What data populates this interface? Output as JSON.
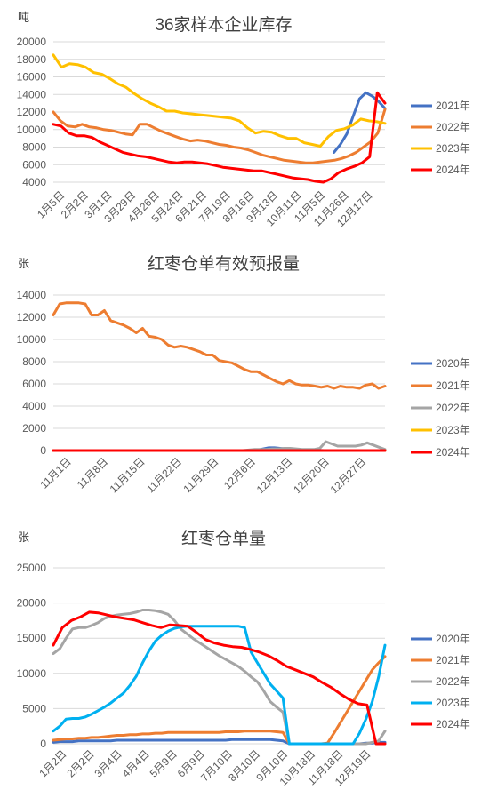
{
  "chart_data": [
    {
      "type": "line",
      "title": "36家样本企业库存",
      "unit": "吨",
      "ylim": [
        4000,
        20000
      ],
      "yticks": [
        4000,
        6000,
        8000,
        10000,
        12000,
        14000,
        16000,
        18000,
        20000
      ],
      "x_tick_labels": [
        "1月5日",
        "2月2日",
        "3月1日",
        "3月29日",
        "4月26日",
        "5月24日",
        "6月21日",
        "7月19日",
        "8月16日",
        "9月13日",
        "10月11日",
        "11月5日",
        "11月26日",
        "12月17日"
      ],
      "grid": true,
      "legend_position": "right",
      "series": [
        {
          "name": "2021年",
          "color": "#4472c4",
          "values": [
            null,
            null,
            null,
            null,
            null,
            null,
            null,
            null,
            null,
            null,
            null,
            null,
            null,
            null,
            null,
            null,
            null,
            null,
            null,
            null,
            null,
            null,
            null,
            null,
            null,
            null,
            null,
            null,
            null,
            null,
            null,
            null,
            null,
            null,
            null,
            null,
            null,
            null,
            null,
            null,
            null,
            null,
            null,
            null,
            7400,
            8300,
            9500,
            11500,
            13500,
            14200,
            13800,
            13200,
            12400
          ]
        },
        {
          "name": "2022年",
          "color": "#ed7d31",
          "values": [
            12000,
            11000,
            10400,
            10300,
            10600,
            10300,
            10200,
            10000,
            9900,
            9700,
            9500,
            9400,
            10600,
            10600,
            10200,
            9800,
            9500,
            9200,
            8900,
            8700,
            8800,
            8700,
            8500,
            8300,
            8200,
            8000,
            7900,
            7700,
            7400,
            7100,
            6900,
            6700,
            6500,
            6400,
            6300,
            6200,
            6200,
            6300,
            6400,
            6500,
            6700,
            7000,
            7400,
            8000,
            8600,
            9600,
            12300
          ]
        },
        {
          "name": "2023年",
          "color": "#ffc000",
          "values": [
            18500,
            17100,
            17500,
            17400,
            17100,
            16500,
            16300,
            15800,
            15200,
            14800,
            14100,
            13500,
            13000,
            12600,
            12100,
            12100,
            11900,
            11800,
            11700,
            11600,
            11500,
            11400,
            11300,
            11000,
            10200,
            9600,
            9800,
            9700,
            9300,
            9000,
            9000,
            8500,
            8300,
            8100,
            9200,
            9900,
            10100,
            10500,
            11200,
            11000,
            10900,
            10700
          ]
        },
        {
          "name": "2024年",
          "color": "#ff0000",
          "values": [
            10600,
            10400,
            9600,
            9300,
            9300,
            9100,
            8600,
            8200,
            7800,
            7400,
            7200,
            7000,
            6900,
            6700,
            6500,
            6300,
            6200,
            6300,
            6300,
            6200,
            6100,
            5900,
            5700,
            5600,
            5500,
            5400,
            5300,
            5300,
            5100,
            4900,
            4700,
            4500,
            4400,
            4300,
            4100,
            4000,
            4400,
            5100,
            5500,
            5800,
            6200,
            6900,
            14200,
            13000
          ]
        }
      ]
    },
    {
      "type": "line",
      "title": "红枣仓单有效预报量",
      "unit": "张",
      "ylim": [
        0,
        14000
      ],
      "yticks": [
        0,
        2000,
        4000,
        6000,
        8000,
        10000,
        12000,
        14000
      ],
      "x_tick_labels": [
        "11月1日",
        "11月8日",
        "11月15日",
        "11月22日",
        "11月29日",
        "12月6日",
        "12月13日",
        "12月20日",
        "12月27日"
      ],
      "grid": true,
      "legend_position": "right",
      "series": [
        {
          "name": "2020年",
          "color": "#4472c4",
          "values": [
            0,
            0,
            0,
            0,
            0,
            0,
            0,
            0,
            0,
            0,
            0,
            0,
            0,
            0,
            0,
            0,
            0,
            0,
            0,
            0,
            0,
            0,
            0,
            0,
            0,
            0,
            0,
            0,
            0,
            0,
            0,
            0,
            0,
            0,
            0,
            0,
            0,
            50,
            150,
            250,
            250,
            200,
            150,
            150,
            100,
            80,
            60,
            40,
            20,
            0,
            0,
            0,
            0,
            0,
            0,
            0,
            0,
            0,
            0,
            0,
            0
          ]
        },
        {
          "name": "2021年",
          "color": "#ed7d31",
          "values": [
            12200,
            13200,
            13300,
            13300,
            13300,
            13200,
            12200,
            12200,
            12600,
            11700,
            11500,
            11300,
            11000,
            10600,
            11000,
            10300,
            10200,
            10000,
            9500,
            9300,
            9400,
            9300,
            9100,
            8900,
            8600,
            8600,
            8100,
            8000,
            7900,
            7600,
            7300,
            7100,
            7100,
            6800,
            6500,
            6200,
            6000,
            6300,
            6000,
            5900,
            5900,
            5800,
            5700,
            5800,
            5600,
            5800,
            5700,
            5700,
            5600,
            5900,
            6000,
            5600,
            5800
          ]
        },
        {
          "name": "2022年",
          "color": "#a5a5a5",
          "values": [
            0,
            0,
            0,
            0,
            0,
            0,
            0,
            0,
            0,
            0,
            0,
            0,
            0,
            0,
            0,
            0,
            0,
            0,
            0,
            0,
            0,
            0,
            0,
            0,
            0,
            0,
            0,
            0,
            0,
            0,
            0,
            0,
            0,
            50,
            100,
            100,
            100,
            150,
            150,
            200,
            200,
            150,
            100,
            100,
            100,
            200,
            800,
            600,
            400,
            400,
            400,
            400,
            500,
            700,
            500,
            300,
            100
          ]
        },
        {
          "name": "2023年",
          "color": "#ffc000",
          "values": [
            0,
            0,
            0,
            0,
            0,
            0,
            0,
            0,
            0,
            0,
            0,
            0,
            0,
            0,
            0,
            0,
            0,
            0,
            0,
            0,
            0,
            0,
            0,
            0,
            0,
            0,
            0,
            0,
            0,
            0,
            0,
            0,
            0,
            0,
            0,
            0,
            0,
            0,
            0,
            0,
            0,
            0,
            0,
            0,
            0,
            0,
            0,
            0,
            0,
            0,
            0,
            0,
            0,
            0,
            0,
            0,
            0,
            0,
            0,
            0,
            0,
            0,
            0,
            0,
            0,
            0,
            0,
            0,
            0,
            0,
            0,
            0,
            0,
            0,
            0,
            0,
            0,
            0,
            0,
            0,
            0,
            0,
            0,
            0,
            0,
            0,
            0,
            0,
            0,
            0,
            0,
            0,
            0,
            0,
            0,
            0,
            0,
            0,
            0,
            0,
            0,
            0,
            0,
            0,
            0,
            0,
            0,
            0,
            0,
            0,
            0,
            0,
            0,
            0,
            0,
            0,
            0,
            0,
            0,
            0,
            0,
            0,
            0,
            0,
            0,
            0,
            0,
            0,
            0,
            0,
            0,
            0,
            0,
            0,
            0,
            0,
            0,
            0,
            0,
            0,
            0,
            0,
            0,
            0,
            0,
            0,
            0,
            0,
            0,
            0,
            0,
            0,
            0,
            0,
            0,
            0,
            0,
            0,
            0,
            0,
            0,
            0,
            0,
            0,
            0,
            0,
            0,
            0,
            0,
            0,
            0,
            0,
            0,
            0,
            0,
            0,
            0,
            0,
            0,
            0,
            0,
            0,
            0,
            0,
            0,
            0,
            0,
            0,
            0,
            0,
            0,
            0,
            0,
            0,
            0,
            0,
            0,
            0,
            0,
            0
          ]
        },
        {
          "name": "2024年",
          "color": "#ff0000",
          "values": [
            0,
            0,
            0,
            0,
            0,
            0,
            0,
            0,
            0,
            0,
            0,
            0,
            0,
            0,
            0,
            0,
            0,
            0,
            0,
            0,
            0,
            0,
            0,
            0,
            0,
            0,
            0,
            0,
            0,
            0,
            0,
            0,
            0,
            0,
            0,
            0,
            0,
            0,
            0,
            0,
            0,
            0,
            0,
            0,
            0,
            0,
            0,
            0,
            0,
            0,
            0,
            0,
            0,
            0,
            0,
            0,
            0,
            0,
            0,
            0,
            0,
            0,
            0,
            0,
            0,
            0,
            0,
            0,
            0,
            0,
            0,
            0,
            0,
            0,
            0,
            0,
            0,
            0,
            0,
            0,
            0,
            0,
            0,
            0,
            0,
            0,
            0,
            0,
            0,
            0,
            0,
            0,
            0,
            0,
            0,
            0,
            0,
            0,
            0,
            0,
            0,
            0,
            0,
            0,
            0,
            0,
            0,
            0,
            0,
            0,
            0,
            0,
            0,
            0,
            0,
            0,
            0,
            0,
            0,
            0,
            0,
            0,
            0,
            0,
            0,
            0,
            0,
            0,
            0,
            0,
            0,
            0,
            0,
            0,
            0,
            0,
            0,
            0,
            0,
            0,
            0,
            0,
            0,
            0,
            0,
            0,
            0,
            0,
            0,
            0,
            0,
            0,
            0,
            0,
            0,
            0,
            0,
            0,
            0,
            0,
            0,
            0,
            0,
            0,
            0,
            0,
            0,
            0,
            0,
            0,
            0,
            0,
            0,
            0,
            0,
            0,
            0,
            0,
            0,
            0,
            0,
            0,
            0,
            0,
            0,
            0,
            0,
            0,
            0,
            0,
            0,
            0,
            0,
            0,
            0,
            0,
            0,
            0,
            0,
            0
          ]
        }
      ]
    },
    {
      "type": "line",
      "title": "红枣仓单量",
      "unit": "张",
      "ylim": [
        0,
        25000
      ],
      "yticks": [
        0,
        5000,
        10000,
        15000,
        20000,
        25000
      ],
      "x_tick_labels": [
        "1月2日",
        "2月2日",
        "3月4日",
        "4月4日",
        "5月9日",
        "6月9日",
        "7月10日",
        "8月10日",
        "9月10日",
        "10月18日",
        "11月18日",
        "12月19日"
      ],
      "grid": true,
      "legend_position": "right",
      "series": [
        {
          "name": "2020年",
          "color": "#4472c4",
          "values": [
            200,
            300,
            300,
            300,
            400,
            400,
            400,
            400,
            400,
            400,
            500,
            500,
            500,
            500,
            500,
            500,
            500,
            500,
            500,
            500,
            500,
            500,
            500,
            500,
            500,
            500,
            500,
            500,
            600,
            600,
            600,
            600,
            600,
            600,
            600,
            500,
            400,
            0,
            0,
            0,
            0,
            0,
            0,
            0,
            0,
            0,
            0,
            0,
            0,
            100,
            100,
            200,
            200
          ]
        },
        {
          "name": "2021年",
          "color": "#ed7d31",
          "values": [
            500,
            600,
            700,
            700,
            800,
            800,
            900,
            900,
            1000,
            1100,
            1200,
            1200,
            1300,
            1300,
            1400,
            1400,
            1500,
            1500,
            1600,
            1600,
            1600,
            1600,
            1600,
            1600,
            1600,
            1600,
            1600,
            1700,
            1700,
            1700,
            1800,
            1800,
            1800,
            1800,
            1800,
            1700,
            1600,
            0,
            0,
            0,
            0,
            0,
            0,
            100,
            1500,
            3000,
            4500,
            6000,
            7500,
            9000,
            10500,
            11500,
            12400
          ]
        },
        {
          "name": "2022年",
          "color": "#a5a5a5",
          "values": [
            12800,
            13500,
            15000,
            16300,
            16500,
            16500,
            16800,
            17200,
            17800,
            18100,
            18300,
            18400,
            18500,
            18700,
            19000,
            19000,
            18900,
            18700,
            18400,
            17500,
            16300,
            15600,
            14900,
            14300,
            13700,
            13100,
            12500,
            12000,
            11500,
            11000,
            10300,
            9500,
            8800,
            7500,
            6000,
            5200,
            4500,
            0,
            0,
            0,
            0,
            0,
            0,
            0,
            0,
            0,
            0,
            0,
            0,
            0,
            200,
            400,
            1800
          ]
        },
        {
          "name": "2023年",
          "color": "#00b0f0",
          "values": [
            1800,
            2500,
            3500,
            3600,
            3600,
            3800,
            4200,
            4700,
            5200,
            5800,
            6500,
            7200,
            8300,
            9600,
            11500,
            13200,
            14600,
            15400,
            16000,
            16400,
            16600,
            16700,
            16700,
            16700,
            16700,
            16700,
            16700,
            16700,
            16700,
            16700,
            16500,
            13000,
            11500,
            10000,
            8500,
            7500,
            6500,
            0,
            0,
            0,
            0,
            0,
            0,
            0,
            0,
            0,
            0,
            0,
            1500,
            3500,
            6000,
            9500,
            14000
          ]
        },
        {
          "name": "2024年",
          "color": "#ff0000",
          "values": [
            14000,
            16500,
            17500,
            18000,
            18700,
            18600,
            18300,
            18000,
            17800,
            17600,
            17200,
            16800,
            16500,
            16900,
            16800,
            16700,
            15800,
            14800,
            14300,
            14000,
            13800,
            13700,
            13400,
            13000,
            12500,
            11800,
            11000,
            10500,
            10000,
            9500,
            8700,
            8000,
            7100,
            6300,
            5700,
            5500,
            0,
            0
          ]
        }
      ]
    }
  ]
}
